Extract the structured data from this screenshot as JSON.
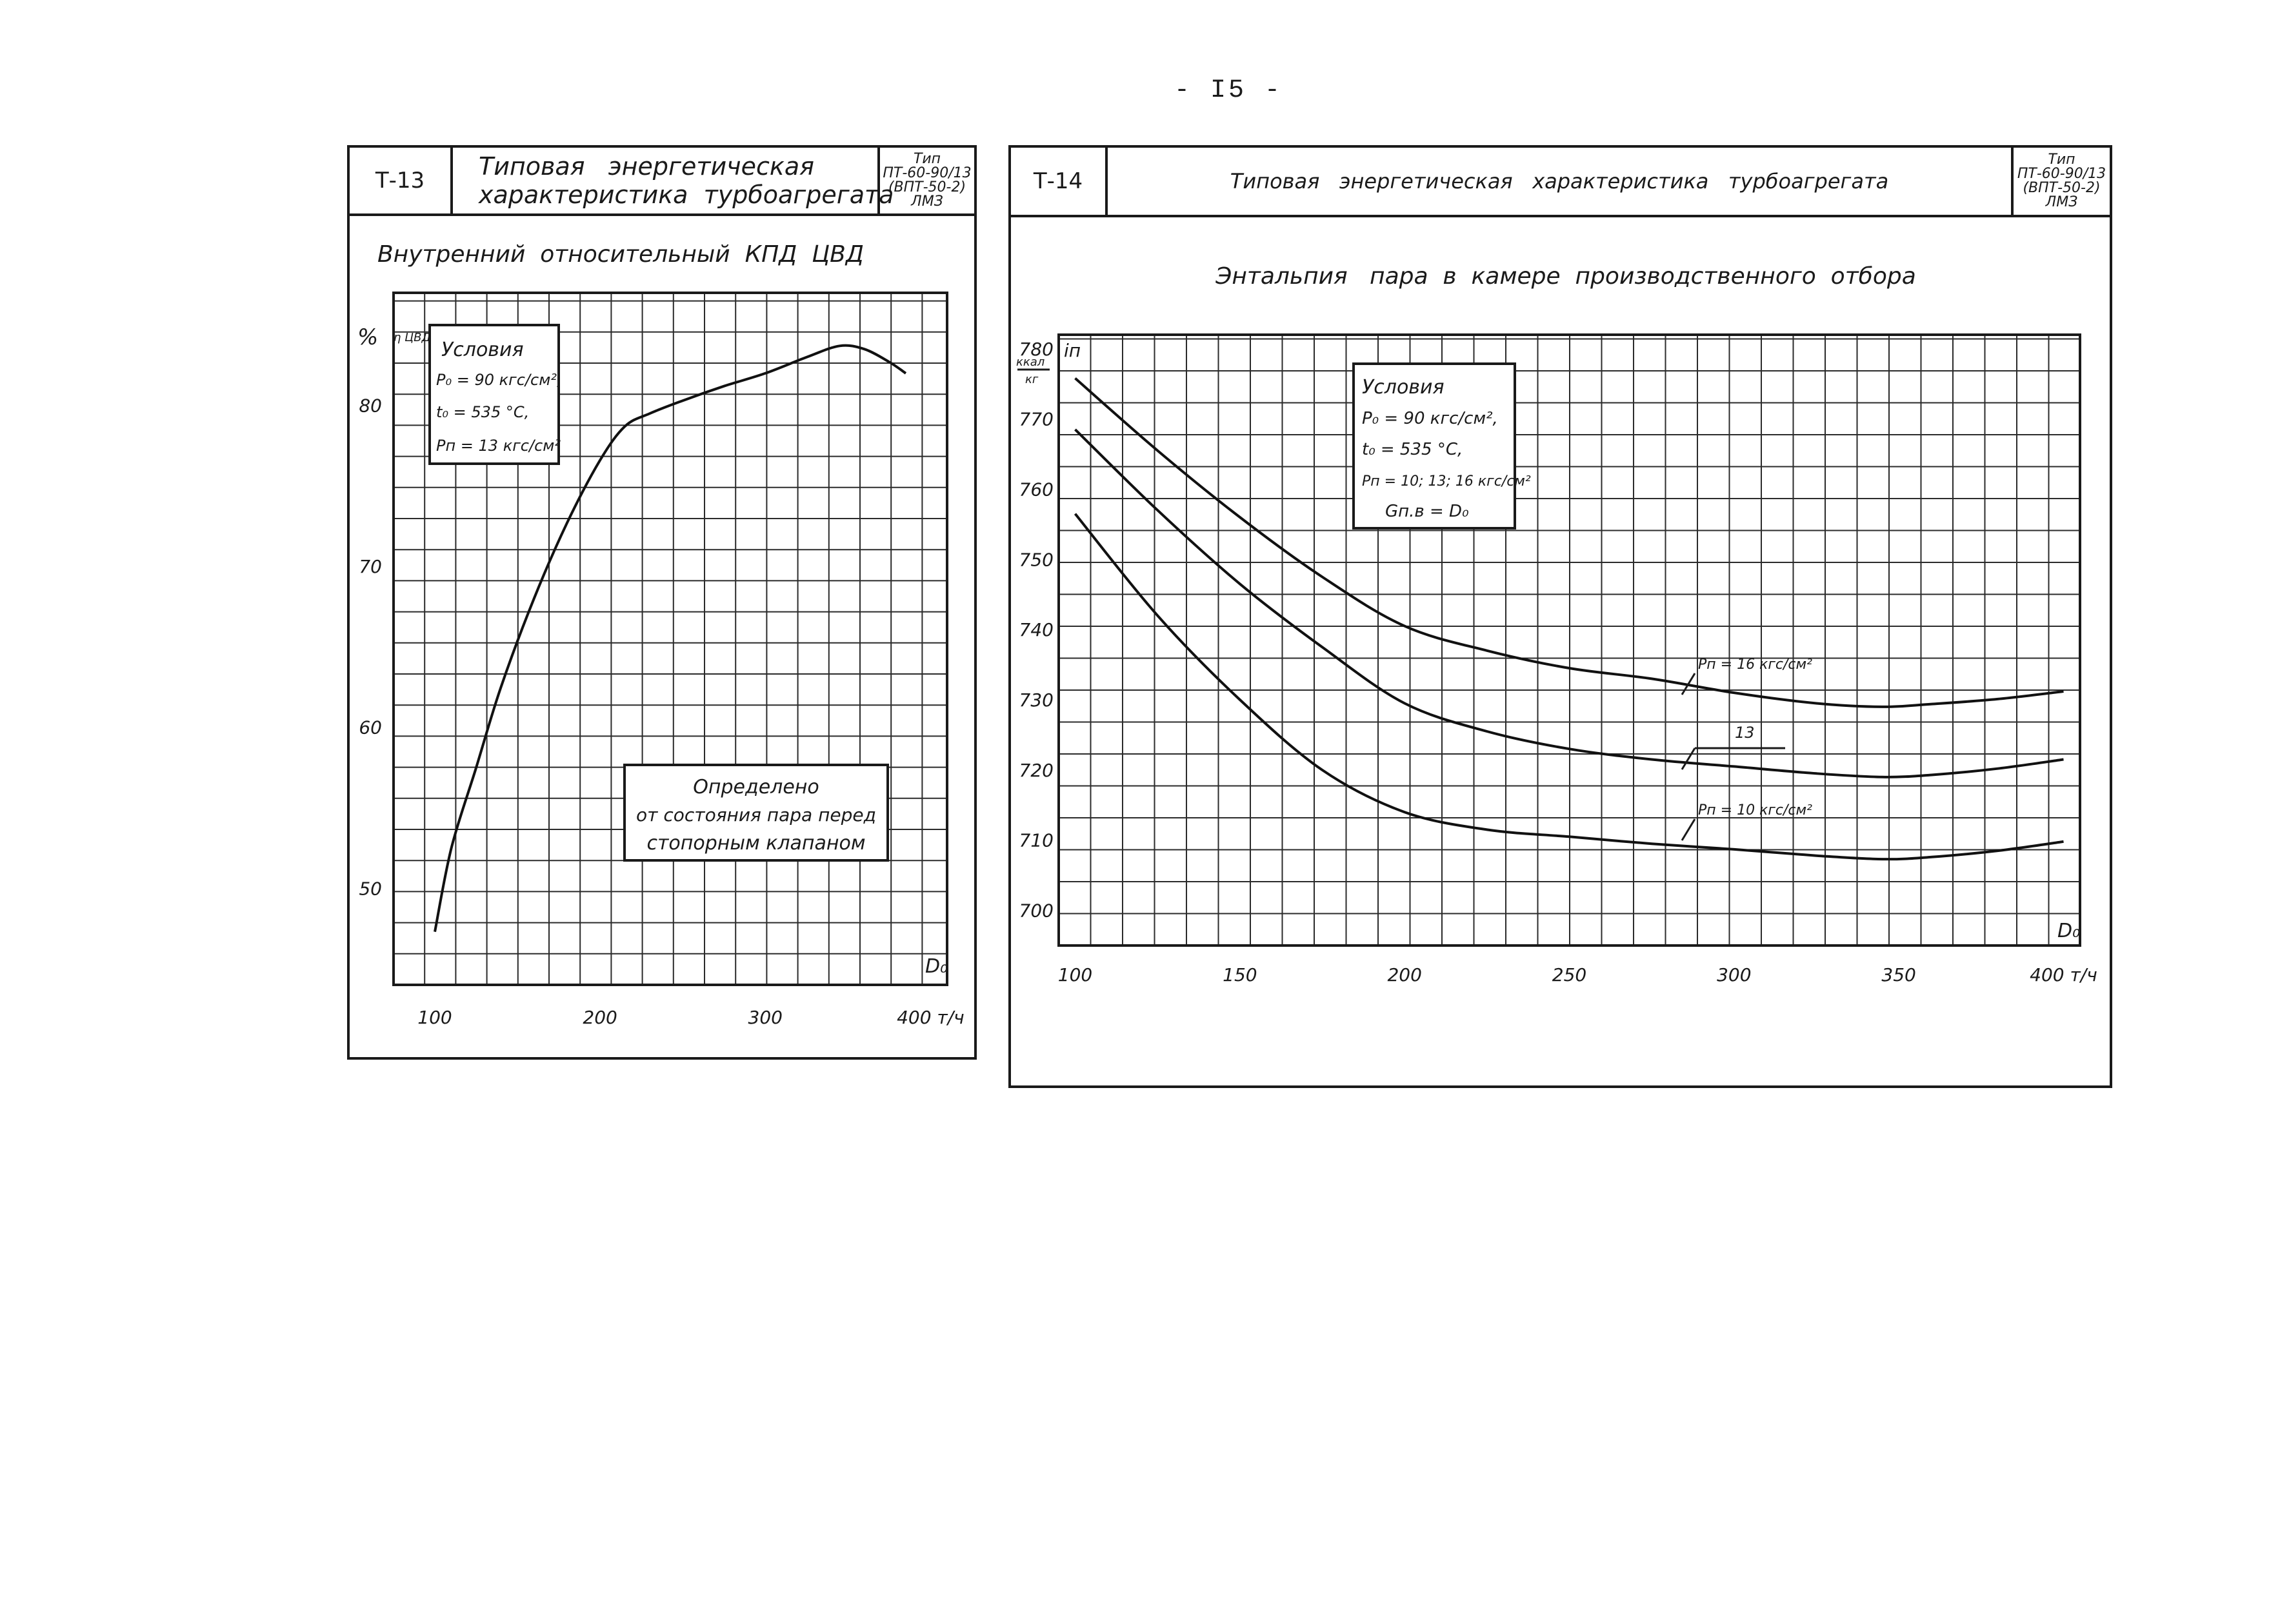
{
  "page": {
    "number": "- I5 -"
  },
  "left_sheet": {
    "code": "Т-13",
    "header_title_line1": "Типовая   энергетическая",
    "header_title_line2": "характеристика  турбоагрегата",
    "type_line1": "Тип",
    "type_line2": "ПТ-60-90/13",
    "type_line3": "(ВПТ-50-2)",
    "type_line4": "ЛМЗ",
    "chart_title": "Внутренний  относительный  КПД  ЦВД",
    "y_unit": "%",
    "y_symbol": "η ЦВД / oi",
    "conditions_title": "Условия",
    "conditions_p0": "P₀ = 90 кгс/см²,",
    "conditions_t0": "t₀ = 535 °C,",
    "conditions_pn": "Pп = 13 кгс/см²",
    "note_line1": "Определено",
    "note_line2": "от состояния пара перед",
    "note_line3": "стопорным клапаном",
    "x_axis_symbol": "D₀",
    "x_unit": "т/ч"
  },
  "right_sheet": {
    "code": "Т-14",
    "header_title": "Типовая   энергетическая   характеристика   турбоагрегата",
    "type_line1": "Тип",
    "type_line2": "ПТ-60-90/13",
    "type_line3": "(ВПТ-50-2)",
    "type_line4": "ЛМЗ",
    "chart_title": "Энтальпия   пара  в  камере  производственного  отбора",
    "y_unit_line1": "ккал",
    "y_unit_line2": "кг",
    "y_symbol": "iп",
    "conditions_title": "Условия",
    "conditions_p0": "P₀ = 90 кгс/см²,",
    "conditions_t0": "t₀ = 535 °C,",
    "conditions_pn": "Pп = 10; 13; 16 кгс/см²",
    "conditions_g": "Gп.в = D₀",
    "label_16": "Pп = 16 кгс/см²",
    "label_13": "13",
    "label_10": "Pп = 10 кгс/см²",
    "x_axis_symbol": "D₀",
    "x_unit": "т/ч"
  },
  "chart_data": [
    {
      "type": "line",
      "title": "Внутренний  относительный  КПД  ЦВД",
      "xlabel": "D₀, т/ч",
      "ylabel": "η ЦВД oi, %",
      "xlim": [
        75,
        410
      ],
      "ylim": [
        44,
        87
      ],
      "x_ticks": [
        100,
        200,
        300,
        400
      ],
      "x_tick_labels": [
        "100",
        "200",
        "300",
        "400 т/ч"
      ],
      "y_ticks": [
        50,
        60,
        70,
        80
      ],
      "y_tick_labels": [
        "50",
        "60",
        "70",
        "80"
      ],
      "grid": true,
      "series": [
        {
          "name": "КПД ЦВД",
          "x": [
            100,
            110,
            125,
            140,
            160,
            180,
            200,
            215,
            230,
            250,
            275,
            300,
            325,
            345,
            360,
            375,
            385
          ],
          "values": [
            47.3,
            52.5,
            57.5,
            62.5,
            68.0,
            72.7,
            76.6,
            78.7,
            79.5,
            80.3,
            81.2,
            82.0,
            83.0,
            83.7,
            83.5,
            82.7,
            82.0
          ]
        }
      ]
    },
    {
      "type": "line",
      "title": "Энтальпия   пара  в  камере  производственного  отбора",
      "xlabel": "D₀, т/ч",
      "ylabel": "iп, ккал/кг",
      "xlim": [
        95,
        405
      ],
      "ylim": [
        695,
        782
      ],
      "x_ticks": [
        100,
        150,
        200,
        250,
        300,
        350,
        400
      ],
      "x_tick_labels": [
        "100",
        "150",
        "200",
        "250",
        "300",
        "350",
        "400 т/ч"
      ],
      "y_ticks": [
        700,
        710,
        720,
        730,
        740,
        750,
        760,
        770,
        780
      ],
      "y_tick_labels": [
        "700",
        "710",
        "720",
        "730",
        "740",
        "750",
        "760",
        "770",
        "780"
      ],
      "grid": true,
      "series": [
        {
          "name": "Pп = 16 кгс/см²",
          "x": [
            100,
            125,
            150,
            175,
            200,
            225,
            250,
            275,
            300,
            325,
            345,
            360,
            380,
            400
          ],
          "values": [
            775.8,
            765.5,
            756.0,
            747.5,
            740.5,
            737.0,
            734.5,
            733.0,
            731.0,
            729.5,
            729.0,
            729.4,
            730.1,
            731.2
          ]
        },
        {
          "name": "13",
          "x": [
            100,
            125,
            150,
            175,
            200,
            225,
            250,
            275,
            300,
            325,
            345,
            360,
            380,
            400
          ],
          "values": [
            768.5,
            757.0,
            746.5,
            737.5,
            729.5,
            725.5,
            723.0,
            721.5,
            720.5,
            719.5,
            719.0,
            719.3,
            720.2,
            721.5
          ]
        },
        {
          "name": "Pп = 10 кгс/см²",
          "x": [
            100,
            125,
            150,
            175,
            200,
            225,
            250,
            275,
            300,
            325,
            345,
            360,
            380,
            400
          ],
          "values": [
            756.5,
            742.0,
            730.0,
            720.0,
            714.0,
            711.5,
            710.5,
            709.5,
            708.7,
            707.8,
            707.3,
            707.6,
            708.5,
            709.8
          ]
        }
      ]
    }
  ]
}
